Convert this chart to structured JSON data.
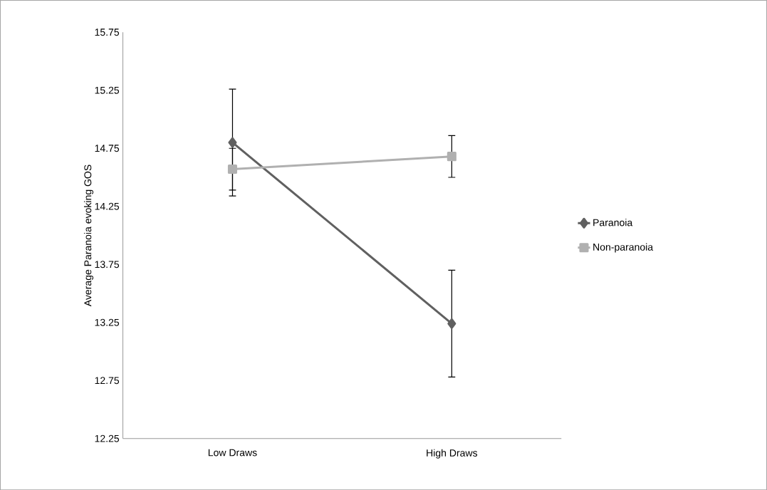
{
  "chart_data": {
    "type": "line",
    "ylabel": "Average Paranoia evoking GOS",
    "categories": [
      "Low Draws",
      "High Draws"
    ],
    "series": [
      {
        "name": "Paranoia",
        "color": "#606060",
        "values": [
          14.8,
          13.24
        ],
        "errors": [
          0.46,
          0.46
        ],
        "marker": "diamond"
      },
      {
        "name": "Non-paranoia",
        "color": "#b0b0b0",
        "values": [
          14.57,
          14.68
        ],
        "errors": [
          0.18,
          0.18
        ],
        "marker": "square"
      }
    ],
    "ylim": [
      12.25,
      15.75
    ],
    "yticks": [
      12.25,
      12.75,
      13.25,
      13.75,
      14.25,
      14.75,
      15.25,
      15.75
    ],
    "grid": false,
    "legend": "right",
    "line_style": "solid"
  }
}
